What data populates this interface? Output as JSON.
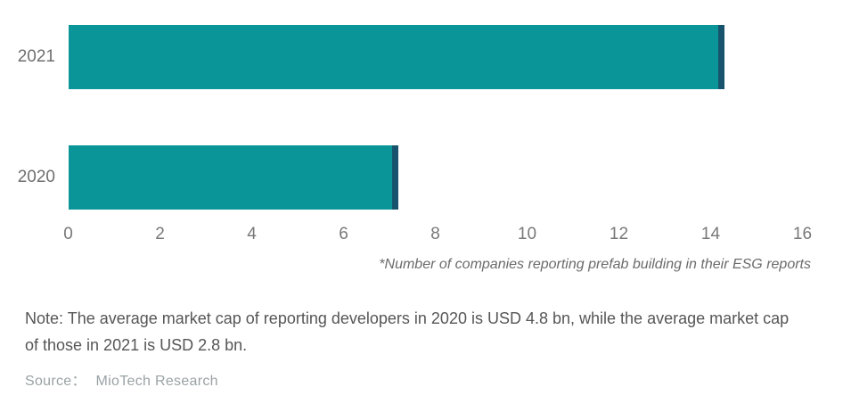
{
  "chart_data": {
    "type": "bar",
    "orientation": "horizontal",
    "title": "",
    "categories": [
      "2021",
      "2020"
    ],
    "values": [
      14.3,
      7.2
    ],
    "x_ticks": [
      "0",
      "2",
      "4",
      "6",
      "8",
      "10",
      "12",
      "14",
      "16"
    ],
    "xlim": [
      0,
      16
    ],
    "grid": false,
    "legend": "none",
    "footnote": "*Number of companies reporting prefab building in their ESG reports",
    "bar_color": "#0a9599",
    "bar_tip_color": "#17536d",
    "axis_label_color": "#787878"
  },
  "note": {
    "text": "Note: The average market cap of reporting developers in 2020 is USD 4.8 bn, while the average market cap of those in 2021 is USD 2.8 bn."
  },
  "source": {
    "label": "Source：",
    "name": "MioTech Research"
  }
}
